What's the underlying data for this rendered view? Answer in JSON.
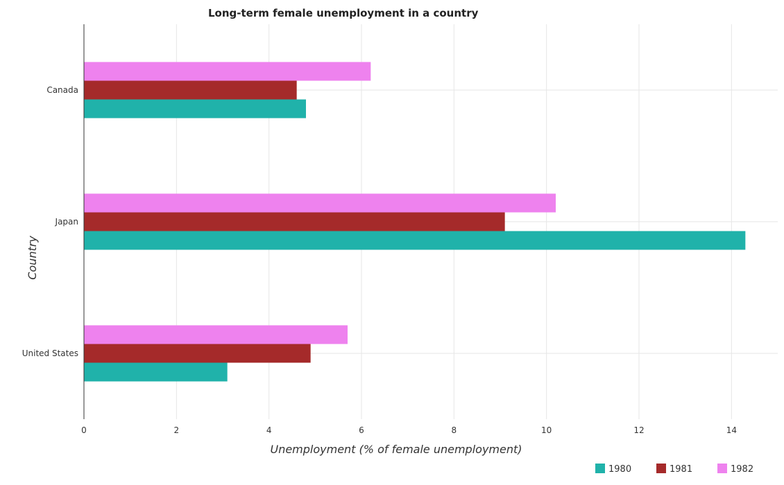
{
  "chart_data": {
    "type": "bar",
    "orientation": "horizontal",
    "title": "Long-term female unemployment in a country",
    "xlabel": "Unemployment (% of female unemployment)",
    "ylabel": "Country",
    "xlim": [
      0,
      15
    ],
    "x_ticks": [
      "0",
      "2",
      "4",
      "6",
      "8",
      "10",
      "12",
      "14"
    ],
    "categories": [
      "Canada",
      "Japan",
      "United States"
    ],
    "series": [
      {
        "name": "1980",
        "color": "#20b2aa",
        "values": [
          4.8,
          14.3,
          3.1
        ]
      },
      {
        "name": "1981",
        "color": "#a52a2a",
        "values": [
          4.6,
          9.1,
          4.9
        ]
      },
      {
        "name": "1982",
        "color": "#ee82ee",
        "values": [
          6.2,
          10.2,
          5.7
        ]
      }
    ],
    "grid": true,
    "legend_position": "bottom-right"
  }
}
